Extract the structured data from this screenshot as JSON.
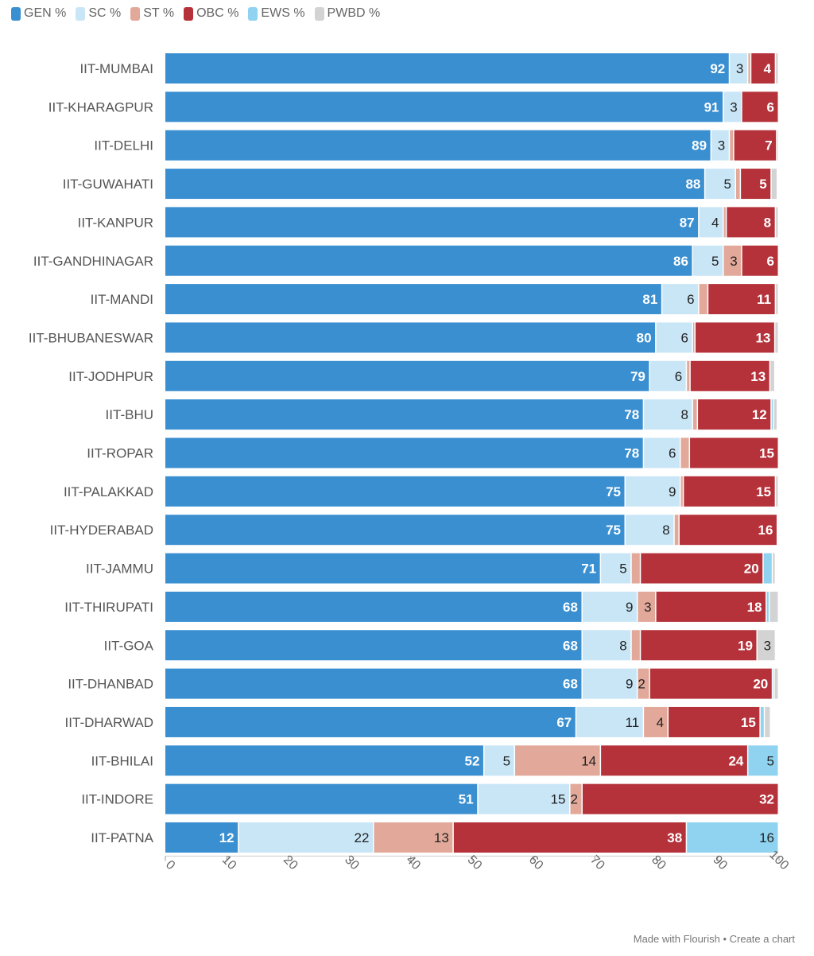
{
  "chart_data": {
    "type": "bar",
    "orientation": "horizontal",
    "stacked": true,
    "title": "",
    "xlabel": "",
    "ylabel": "",
    "xlim": [
      0,
      100
    ],
    "xticks": [
      0,
      10,
      20,
      30,
      40,
      50,
      60,
      70,
      80,
      90,
      100
    ],
    "grid": false,
    "legend_position": "top-left",
    "categories": [
      "IIT-MUMBAI",
      "IIT-KHARAGPUR",
      "IIT-DELHI",
      "IIT-GUWAHATI",
      "IIT-KANPUR",
      "IIT-GANDHINAGAR",
      "IIT-MANDI",
      "IIT-BHUBANESWAR",
      "IIT-JODHPUR",
      "IIT-BHU",
      "IIT-ROPAR",
      "IIT-PALAKKAD",
      "IIT-HYDERABAD",
      "IIT-JAMMU",
      "IIT-THIRUPATI",
      "IIT-GOA",
      "IIT-DHANBAD",
      "IIT-DHARWAD",
      "IIT-BHILAI",
      "IIT-INDORE",
      "IIT-PATNA"
    ],
    "series": [
      {
        "name": "GEN %",
        "color": "#3a8fd1",
        "values": [
          92,
          91,
          89,
          88,
          87,
          86,
          81,
          80,
          79,
          78,
          78,
          75,
          75,
          71,
          68,
          68,
          68,
          67,
          52,
          51,
          12
        ]
      },
      {
        "name": "SC %",
        "color": "#c9e6f7",
        "values": [
          3,
          3,
          3,
          5,
          4,
          5,
          6,
          6,
          6,
          8,
          6,
          9,
          8,
          5,
          9,
          8,
          9,
          11,
          5,
          15,
          22
        ]
      },
      {
        "name": "ST %",
        "color": "#e2a99a",
        "values": [
          0.5,
          0,
          0.7,
          0.8,
          0.5,
          3,
          1.5,
          0.4,
          0.6,
          0.8,
          1.5,
          0.5,
          0.8,
          1.5,
          3,
          1.5,
          2,
          4,
          14,
          2,
          13
        ]
      },
      {
        "name": "OBC %",
        "color": "#b5323a",
        "values": [
          4,
          6,
          7,
          5,
          8,
          6,
          11,
          13,
          13,
          12,
          15,
          15,
          16,
          20,
          18,
          19,
          20,
          15,
          24,
          32,
          38
        ]
      },
      {
        "name": "EWS %",
        "color": "#8fd3f0",
        "values": [
          0,
          0,
          0,
          0,
          0,
          0,
          0,
          0,
          0,
          0.4,
          0.5,
          0,
          0,
          1.5,
          0.5,
          0,
          0.3,
          0.7,
          5,
          0,
          16
        ]
      },
      {
        "name": "PWBD %",
        "color": "#d3d3d3",
        "values": [
          0.5,
          0,
          0.3,
          1,
          0.5,
          0,
          0.5,
          0.6,
          0.8,
          0.6,
          0,
          0.5,
          0.2,
          0.5,
          1.5,
          3,
          0.7,
          1,
          0,
          0,
          0
        ]
      }
    ]
  },
  "footer": {
    "made_with": "Made with Flourish",
    "separator": " • ",
    "create": "Create a chart"
  }
}
